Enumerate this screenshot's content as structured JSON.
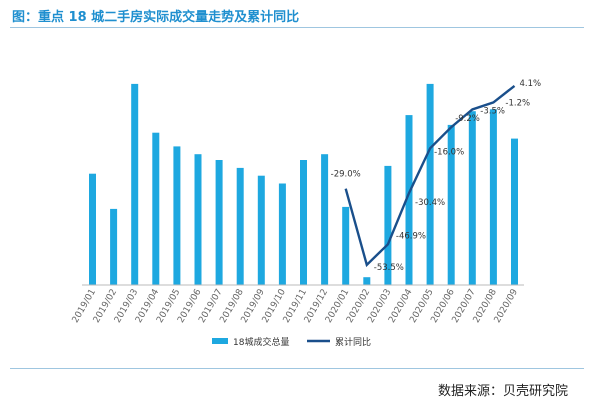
{
  "title": "图：重点 18 城二手房实际成交量走势及累计同比",
  "source": "数据来源：贝壳研究院",
  "colors": {
    "bar": "#1ea8e0",
    "line": "#1a4f8b",
    "title": "#1f8fcf"
  },
  "chart_data": {
    "type": "bar",
    "categories": [
      "2019/01",
      "2019/02",
      "2019/03",
      "2019/04",
      "2019/05",
      "2019/06",
      "2019/07",
      "2019/08",
      "2019/09",
      "2019/10",
      "2019/11",
      "2019/12",
      "2020/01",
      "2020/02",
      "2020/03",
      "2020/04",
      "2020/05",
      "2020/06",
      "2020/07",
      "2020/08",
      "2020/09"
    ],
    "series": [
      {
        "name": "18城成交总量",
        "type": "bar",
        "values": [
          57,
          39,
          103,
          78,
          71,
          67,
          64,
          60,
          56,
          52,
          64,
          67,
          40,
          4,
          61,
          87,
          103,
          82,
          89,
          90,
          75
        ]
      },
      {
        "name": "累计同比",
        "type": "line",
        "values": [
          null,
          null,
          null,
          null,
          null,
          null,
          null,
          null,
          null,
          null,
          null,
          null,
          -29.0,
          -53.5,
          -46.9,
          -30.4,
          -16.0,
          -9.2,
          -3.5,
          -1.2,
          4.1
        ],
        "labels": [
          null,
          null,
          null,
          null,
          null,
          null,
          null,
          null,
          null,
          null,
          null,
          null,
          "-29.0%",
          "-53.5%",
          "-46.9%",
          "-30.4%",
          "-16.0%",
          "-9.2%",
          "-3.5%",
          "-1.2%",
          "4.1%"
        ]
      }
    ],
    "bar_range": [
      0,
      105
    ],
    "line_range": [
      -60,
      6
    ],
    "grid": false,
    "legend": "bottom-center"
  }
}
